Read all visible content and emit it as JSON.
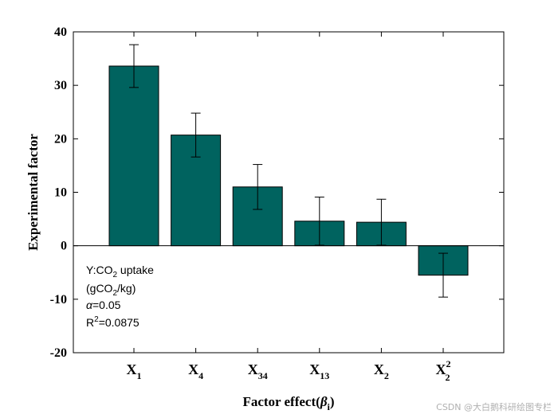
{
  "chart_data": {
    "type": "bar",
    "categories": [
      {
        "base": "X",
        "sub": "1",
        "sup": ""
      },
      {
        "base": "X",
        "sub": "4",
        "sup": ""
      },
      {
        "base": "X",
        "sub": "34",
        "sup": ""
      },
      {
        "base": "X",
        "sub": "13",
        "sup": ""
      },
      {
        "base": "X",
        "sub": "2",
        "sup": ""
      },
      {
        "base": "X",
        "sub": "2",
        "sup": "2"
      }
    ],
    "values": [
      33.6,
      20.7,
      11.0,
      4.6,
      4.4,
      -5.5
    ],
    "errors": [
      4.0,
      4.1,
      4.2,
      4.5,
      4.3,
      4.1
    ],
    "bar_color": "#00635f",
    "ylim": [
      -20,
      40
    ],
    "yticks": [
      -20,
      -10,
      0,
      10,
      20,
      30,
      40
    ],
    "ylabel": "Experimental factor",
    "xlabel": {
      "prefix": "Factor effect(",
      "symbol": "β",
      "sub": "i",
      "suffix": ")"
    },
    "annotation": {
      "line1": {
        "prefix": "Y:CO",
        "sub": "2",
        "suffix": " uptake"
      },
      "line2": {
        "prefix": "(gCO",
        "sub": "2",
        "suffix": "/kg)"
      },
      "line3": {
        "symbol": "α",
        "suffix": "=0.05"
      },
      "line4": {
        "prefix": "R",
        "sup": "2",
        "suffix": "=0.0875"
      }
    }
  },
  "watermark": "CSDN @大白鹅科研绘图专栏"
}
